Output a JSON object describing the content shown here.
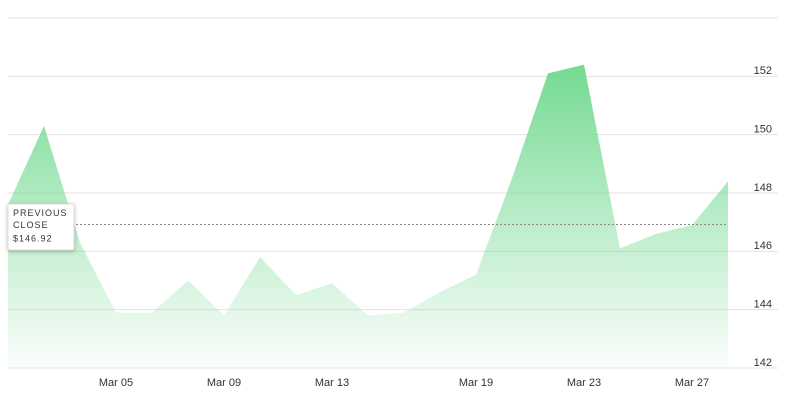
{
  "chart_data": {
    "type": "area",
    "categories": [
      null,
      null,
      null,
      "Mar 05",
      null,
      null,
      "Mar 09",
      null,
      null,
      "Mar 13",
      null,
      null,
      null,
      "Mar 19",
      null,
      null,
      "Mar 23",
      null,
      null,
      "Mar 27",
      null
    ],
    "values": [
      147.6,
      150.3,
      146.3,
      143.9,
      143.9,
      145.0,
      143.8,
      145.8,
      144.5,
      144.9,
      143.8,
      143.9,
      144.6,
      145.2,
      148.5,
      152.1,
      152.4,
      146.1,
      146.6,
      146.9,
      148.4
    ],
    "color": "#6dd88d",
    "ylim": [
      142,
      154
    ],
    "yticks": [
      142,
      144,
      146,
      148,
      150,
      152
    ],
    "grid": true,
    "reference_line": {
      "title": "PREVIOUS CLOSE",
      "value": 146.92,
      "label": "$146.92"
    }
  }
}
